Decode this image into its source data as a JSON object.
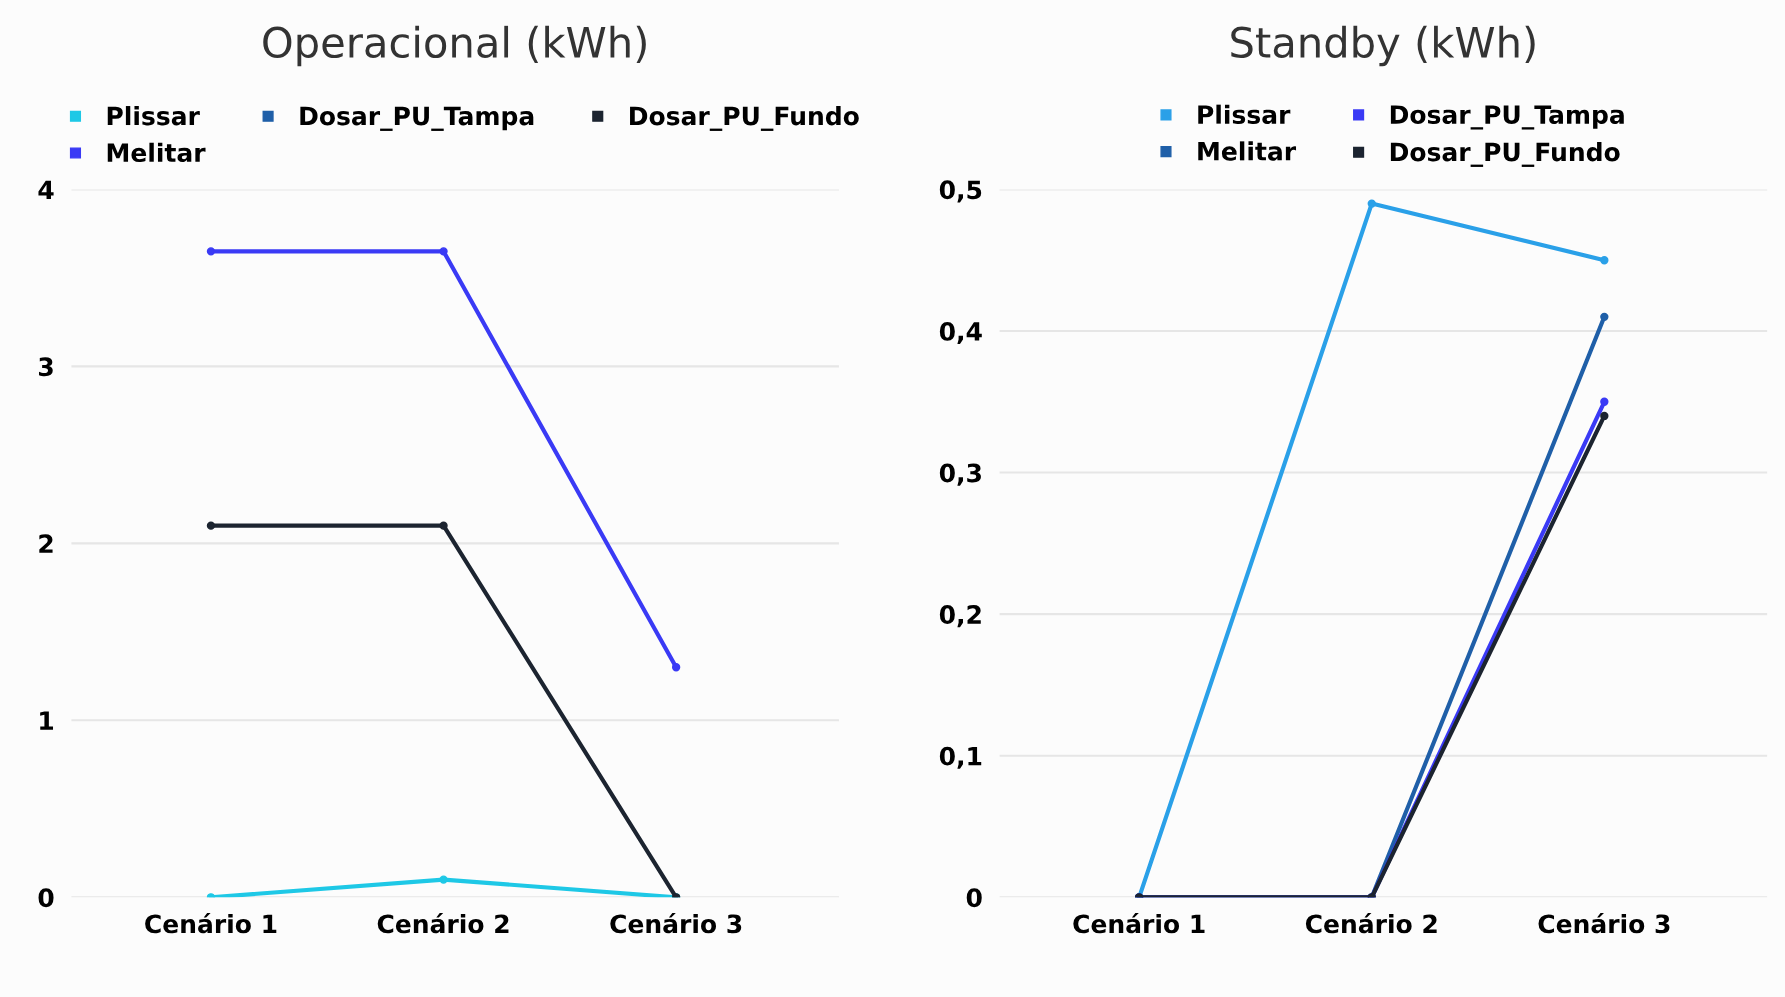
{
  "chart_data": [
    {
      "type": "line",
      "title": "Operacional (kWh)",
      "categories": [
        "Cenário 1",
        "Cenário 2",
        "Cenário 3"
      ],
      "series": [
        {
          "name": "Plissar",
          "color": "#1ec8e6",
          "values": [
            0,
            0.1,
            0
          ]
        },
        {
          "name": "Melitar",
          "color": "#3a3af5",
          "values": [
            3.65,
            3.65,
            1.3
          ]
        },
        {
          "name": "Dosar_PU_Tampa",
          "color": "#1f5fa8",
          "values": [
            null,
            null,
            null
          ]
        },
        {
          "name": "Dosar_PU_Fundo",
          "color": "#1c2430",
          "values": [
            2.1,
            2.1,
            0
          ]
        }
      ],
      "ylim": [
        0,
        4
      ],
      "yticks": [
        0,
        1,
        2,
        3,
        4
      ],
      "grid": "y",
      "legend": "top",
      "marker": "circle",
      "line_style": "solid"
    },
    {
      "type": "line",
      "title": "Standby (kWh)",
      "categories": [
        "Cenário 1",
        "Cenário 2",
        "Cenário 3"
      ],
      "series": [
        {
          "name": "Plissar",
          "color": "#2aa0e8",
          "values": [
            0,
            0.49,
            0.45
          ]
        },
        {
          "name": "Melitar",
          "color": "#1f5fa8",
          "values": [
            0,
            0,
            0.41
          ]
        },
        {
          "name": "Dosar_PU_Tampa",
          "color": "#3a3af5",
          "values": [
            0,
            0,
            0.35
          ]
        },
        {
          "name": "Dosar_PU_Fundo",
          "color": "#1c2430",
          "values": [
            0,
            0,
            0.34
          ]
        }
      ],
      "ylim": [
        0,
        0.5
      ],
      "yticks": [
        0,
        {
          "value": 0.1,
          "label": "0,1"
        },
        {
          "value": 0.2,
          "label": "0,2"
        },
        {
          "value": 0.3,
          "label": "0,3"
        },
        {
          "value": 0.4,
          "label": "0,4"
        },
        {
          "value": 0.5,
          "label": "0,5"
        }
      ],
      "grid": "y",
      "legend": "top",
      "marker": "circle",
      "line_style": "solid"
    }
  ]
}
